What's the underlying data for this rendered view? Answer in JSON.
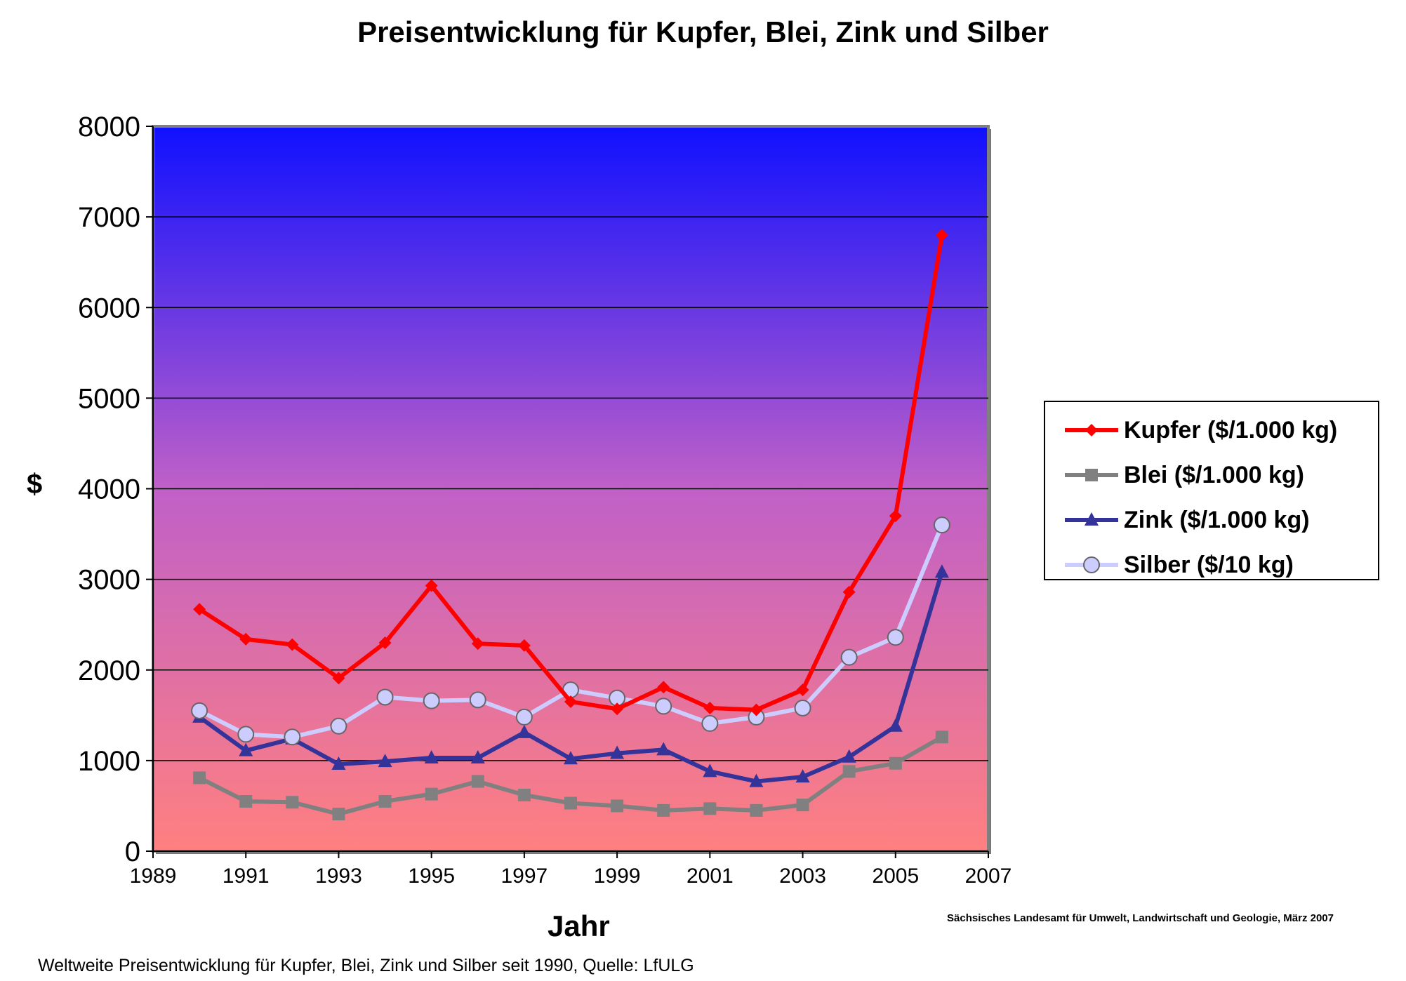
{
  "title": "Preisentwicklung für Kupfer, Blei, Zink und Silber",
  "ylabel": "$",
  "xlabel": "Jahr",
  "credit": "Sächsisches Landesamt für Umwelt, Landwirtschaft und Geologie, März 2007",
  "caption": "Weltweite Preisentwicklung für Kupfer, Blei, Zink und Silber seit 1990, Quelle: LfULG",
  "colors": {
    "background_top": "#1010ff",
    "background_bottom": "#ff8080",
    "gridline": "#000000",
    "plot_border": "#808080"
  },
  "chart_data": {
    "type": "line",
    "title": "Preisentwicklung für Kupfer, Blei, Zink und Silber",
    "xlabel": "Jahr",
    "ylabel": "$",
    "xlim": [
      1989,
      2007
    ],
    "ylim": [
      0,
      8000
    ],
    "x_ticks": [
      "1989",
      "1991",
      "1993",
      "1995",
      "1997",
      "1999",
      "2001",
      "2003",
      "2005",
      "2007"
    ],
    "y_ticks": [
      "0",
      "1000",
      "2000",
      "3000",
      "4000",
      "5000",
      "6000",
      "7000",
      "8000"
    ],
    "grid": true,
    "legend_position": "right",
    "x": [
      1990,
      1991,
      1992,
      1993,
      1994,
      1995,
      1996,
      1997,
      1998,
      1999,
      2000,
      2001,
      2002,
      2003,
      2004,
      2005,
      2006
    ],
    "series": [
      {
        "name": "Kupfer ($/1.000 kg)",
        "color": "#ff0000",
        "marker": "diamond",
        "values": [
          2670,
          2340,
          2280,
          1910,
          2300,
          2930,
          2290,
          2270,
          1650,
          1570,
          1810,
          1580,
          1560,
          1780,
          2860,
          3700,
          6800
        ]
      },
      {
        "name": "Blei ($/1.000 kg)",
        "color": "#808080",
        "marker": "square",
        "values": [
          810,
          550,
          540,
          410,
          550,
          630,
          770,
          620,
          530,
          500,
          450,
          470,
          450,
          510,
          880,
          970,
          1260
        ]
      },
      {
        "name": "Zink ($/1.000 kg)",
        "color": "#333399",
        "marker": "triangle",
        "values": [
          1480,
          1110,
          1240,
          960,
          990,
          1030,
          1030,
          1310,
          1020,
          1080,
          1120,
          880,
          770,
          820,
          1040,
          1380,
          3080
        ]
      },
      {
        "name": "Silber ($/10 kg)",
        "color": "#ccccff",
        "marker": "circle",
        "values": [
          1550,
          1290,
          1260,
          1380,
          1700,
          1660,
          1670,
          1480,
          1780,
          1690,
          1600,
          1410,
          1480,
          1580,
          2140,
          2360,
          3600
        ]
      }
    ]
  }
}
